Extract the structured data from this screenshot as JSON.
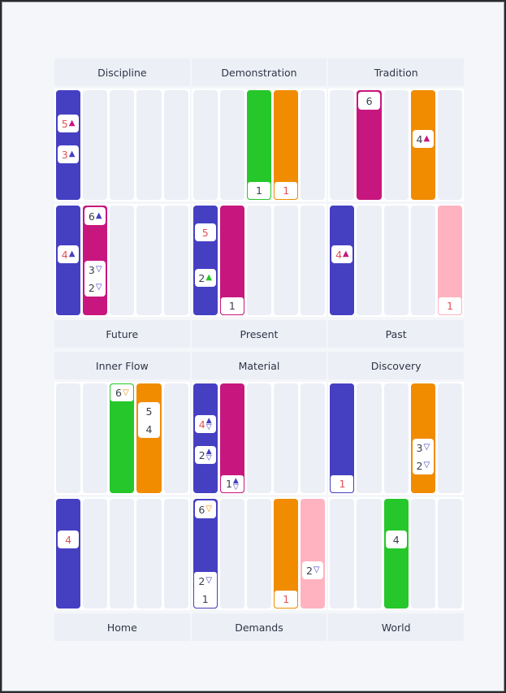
{
  "colors": {
    "blue": "#4540c2",
    "magenta": "#c8167f",
    "green": "#26c72a",
    "orange": "#f18c00",
    "pink": "#ffb3c0",
    "slot_bg": "#eceff6",
    "label_bg": "#eceff6",
    "red_text": "#e0505a",
    "dark_text": "#3a3f4b"
  },
  "top_headers": [
    "Discipline",
    "Demonstration",
    "Tradition"
  ],
  "middle_labels": [
    "Future",
    "Present",
    "Past"
  ],
  "second_headers": [
    "Inner Flow",
    "Material",
    "Discovery"
  ],
  "bottom_labels": [
    "Home",
    "Demands",
    "World"
  ],
  "panels": {
    "discipline_top": {
      "bars": [
        {
          "slot": 1,
          "color": "blue",
          "chips": [
            {
              "value": "5",
              "red": true,
              "marker": "up",
              "marker_color": "magenta",
              "pos": 0.25
            },
            {
              "value": "3",
              "red": true,
              "marker": "up",
              "marker_color": "blue",
              "pos": 0.58
            }
          ]
        }
      ]
    },
    "demonstration_top": {
      "bars": [
        {
          "slot": 3,
          "color": "green",
          "chips": [
            {
              "value": "1",
              "red": false,
              "outlined": true
            }
          ]
        },
        {
          "slot": 4,
          "color": "orange",
          "chips": [
            {
              "value": "1",
              "red": true,
              "outlined": true
            }
          ]
        }
      ]
    },
    "tradition_top": {
      "bars": [
        {
          "slot": 2,
          "color": "magenta",
          "chips": [
            {
              "value": "6",
              "red": false,
              "pos": 0
            }
          ]
        },
        {
          "slot": 4,
          "color": "orange",
          "chips": [
            {
              "value": "4",
              "red": false,
              "marker": "up",
              "marker_color": "magenta",
              "pos": 0.42
            }
          ]
        }
      ]
    },
    "discipline_bottom": {
      "bars": [
        {
          "slot": 1,
          "color": "blue",
          "chips": [
            {
              "value": "4",
              "red": true,
              "marker": "up",
              "marker_color": "blue",
              "pos": 0.42
            }
          ]
        },
        {
          "slot": 2,
          "color": "magenta",
          "chips": [
            {
              "value": "6",
              "red": false,
              "marker": "up",
              "marker_color": "blue",
              "pos": 0
            }
          ],
          "stack": [
            {
              "value": "3",
              "red": false,
              "marker": "down",
              "marker_color": "blue"
            },
            {
              "value": "2",
              "red": true,
              "marker": "down",
              "marker_color": "blue"
            }
          ],
          "stack_pos": 0.5
        }
      ]
    },
    "demonstration_bottom": {
      "bars": [
        {
          "slot": 1,
          "color": "blue",
          "chips": [
            {
              "value": "5",
              "red": true,
              "pos": 0.18
            },
            {
              "value": "2",
              "red": false,
              "marker": "up",
              "marker_color": "green",
              "pos": 0.67
            }
          ]
        },
        {
          "slot": 2,
          "color": "magenta",
          "chips": [
            {
              "value": "1",
              "red": false,
              "outlined": true
            }
          ]
        }
      ]
    },
    "tradition_bottom": {
      "bars": [
        {
          "slot": 1,
          "color": "blue",
          "chips": [
            {
              "value": "4",
              "red": true,
              "marker": "up",
              "marker_color": "magenta",
              "pos": 0.42
            }
          ]
        },
        {
          "slot": 5,
          "color": "pink",
          "chips": [
            {
              "value": "1",
              "red": true,
              "outlined": true
            }
          ]
        }
      ]
    },
    "innerflow_top": {
      "bars": [
        {
          "slot": 3,
          "color": "green",
          "chips": [
            {
              "value": "6",
              "red": false,
              "marker": "down",
              "marker_color": "orange",
              "outlined": "top"
            }
          ]
        },
        {
          "slot": 4,
          "color": "orange",
          "stack": [
            {
              "value": "5",
              "red": true
            },
            {
              "value": "4",
              "red": true
            }
          ],
          "stack_pos": 0.17
        }
      ]
    },
    "material_top": {
      "bars": [
        {
          "slot": 1,
          "color": "blue",
          "chips": [
            {
              "value": "4",
              "red": true,
              "marker": "updown",
              "marker_color": "blue",
              "pos": 0.33
            },
            {
              "value": "2",
              "red": false,
              "marker": "updown",
              "marker_color": "blue",
              "pos": 0.66
            }
          ]
        },
        {
          "slot": 2,
          "color": "magenta",
          "chips": [
            {
              "value": "1",
              "red": false,
              "marker": "updown",
              "marker_color": "blue",
              "outlined": true
            }
          ]
        }
      ]
    },
    "discovery_top": {
      "bars": [
        {
          "slot": 1,
          "color": "blue",
          "chips": [
            {
              "value": "1",
              "red": true,
              "outlined": true
            }
          ]
        },
        {
          "slot": 4,
          "color": "orange",
          "stack": [
            {
              "value": "3",
              "red": false,
              "marker": "down",
              "marker_color": "blue"
            },
            {
              "value": "2",
              "red": true,
              "marker": "down",
              "marker_color": "blue"
            }
          ],
          "stack_pos": 0.5
        }
      ]
    },
    "innerflow_bottom": {
      "bars": [
        {
          "slot": 1,
          "color": "blue",
          "chips": [
            {
              "value": "4",
              "red": true,
              "pos": 0.33
            }
          ]
        }
      ]
    },
    "material_bottom": {
      "bars": [
        {
          "slot": 1,
          "color": "blue",
          "chips": [
            {
              "value": "6",
              "red": false,
              "marker": "down",
              "marker_color": "orange",
              "pos": 0
            }
          ],
          "stack": [
            {
              "value": "2",
              "red": false,
              "marker": "down",
              "marker_color": "blue"
            },
            {
              "value": "1",
              "red": false
            }
          ],
          "stack_pos": "bottom"
        },
        {
          "slot": 4,
          "color": "orange",
          "chips": [
            {
              "value": "1",
              "red": true,
              "outlined": true
            }
          ]
        },
        {
          "slot": 5,
          "color": "pink",
          "chips": [
            {
              "value": "2",
              "red": false,
              "marker": "down",
              "marker_color": "blue",
              "pos": 0.66
            }
          ]
        }
      ]
    },
    "discovery_bottom": {
      "bars": [
        {
          "slot": 3,
          "color": "green",
          "chips": [
            {
              "value": "4",
              "red": false,
              "pos": 0.33
            }
          ]
        }
      ]
    }
  }
}
